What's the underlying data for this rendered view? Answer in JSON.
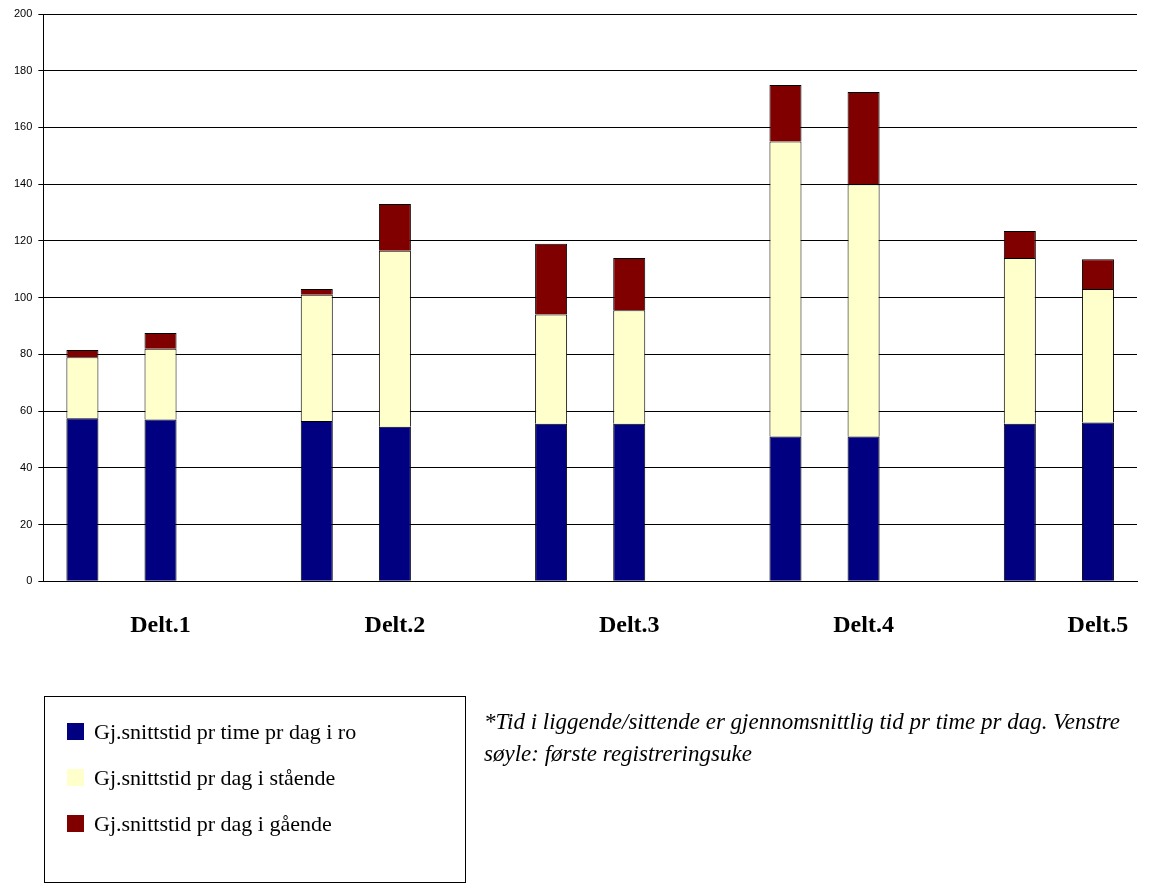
{
  "chart_data": {
    "type": "bar",
    "stacked": true,
    "categories": [
      null,
      "Delt.1",
      null,
      null,
      "Delt.2",
      null,
      null,
      "Delt.3",
      null,
      null,
      "Delt.4",
      null,
      null,
      "Delt.5"
    ],
    "series": [
      {
        "name": "Gj.snittstid pr time pr dag i ro",
        "color": "#000080",
        "values": [
          57.5,
          57,
          null,
          56.5,
          54.5,
          null,
          55.5,
          55.5,
          null,
          51,
          51,
          null,
          55.5,
          56
        ]
      },
      {
        "name": "Gj.snittstid pr dag i stående",
        "color": "#ffffcc",
        "values": [
          21.5,
          25,
          null,
          44.5,
          62,
          null,
          38.5,
          40,
          null,
          104,
          89,
          null,
          58.5,
          47
        ]
      },
      {
        "name": "Gj.snittstid pr dag i gående",
        "color": "#800000",
        "values": [
          2.5,
          5.5,
          null,
          2,
          16.5,
          null,
          25,
          18.5,
          null,
          20,
          32.5,
          null,
          9.5,
          10.5
        ]
      }
    ],
    "ylim": [
      0,
      200
    ],
    "yticks": [
      0,
      20,
      40,
      60,
      80,
      100,
      120,
      140,
      160,
      180,
      200
    ],
    "grid": "y",
    "legend": "bottom left",
    "annotations": [
      "*Tid i liggende/sittende er gjennomsnittlig tid pr time pr dag. Venstre søyle: første registreringsuke"
    ]
  }
}
